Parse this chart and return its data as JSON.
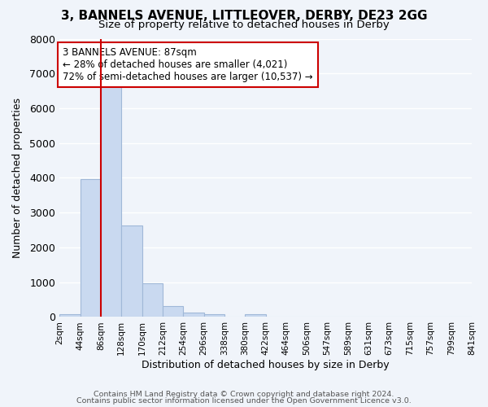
{
  "title": "3, BANNELS AVENUE, LITTLEOVER, DERBY, DE23 2GG",
  "subtitle": "Size of property relative to detached houses in Derby",
  "xlabel": "Distribution of detached houses by size in Derby",
  "ylabel": "Number of detached properties",
  "bin_labels": [
    "2sqm",
    "44sqm",
    "86sqm",
    "128sqm",
    "170sqm",
    "212sqm",
    "254sqm",
    "296sqm",
    "338sqm",
    "380sqm",
    "422sqm",
    "464sqm",
    "506sqm",
    "547sqm",
    "589sqm",
    "631sqm",
    "673sqm",
    "715sqm",
    "757sqm",
    "799sqm",
    "841sqm"
  ],
  "bar_values": [
    75,
    3975,
    6625,
    2625,
    975,
    325,
    125,
    75,
    0,
    75,
    0,
    0,
    0,
    0,
    0,
    0,
    0,
    0,
    0,
    0
  ],
  "bar_color": "#c9d9f0",
  "bar_edge_color": "#a0b8d8",
  "property_line_x": 2,
  "property_line_color": "#cc0000",
  "annotation_text": "3 BANNELS AVENUE: 87sqm\n← 28% of detached houses are smaller (4,021)\n72% of semi-detached houses are larger (10,537) →",
  "annotation_box_color": "#ffffff",
  "annotation_box_edge": "#cc0000",
  "ylim": [
    0,
    8000
  ],
  "yticks": [
    0,
    1000,
    2000,
    3000,
    4000,
    5000,
    6000,
    7000,
    8000
  ],
  "footer1": "Contains HM Land Registry data © Crown copyright and database right 2024.",
  "footer2": "Contains public sector information licensed under the Open Government Licence v3.0.",
  "bg_color": "#f0f4fa",
  "grid_color": "#ffffff"
}
